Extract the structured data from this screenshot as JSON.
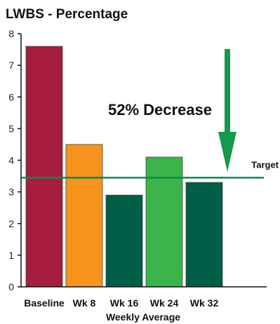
{
  "chart_data": {
    "type": "bar",
    "title": "LWBS - Percentage",
    "xlabel": "Weekly Average",
    "ylabel": "",
    "ylim": [
      0,
      8
    ],
    "yticks": [
      "0",
      "1",
      "2",
      "3",
      "4",
      "5",
      "6",
      "7",
      "8"
    ],
    "categories": [
      "Baseline",
      "Wk 8",
      "Wk 16",
      "Wk 24",
      "Wk 32"
    ],
    "values": [
      7.6,
      4.5,
      2.9,
      4.1,
      3.3
    ],
    "colors": [
      "#a61d3f",
      "#f7941d",
      "#005e47",
      "#3cb44b",
      "#005e47"
    ],
    "target": {
      "label": "Target",
      "value": 3.45,
      "color": "#0a8a4a"
    },
    "annotation": {
      "text": "52% Decrease",
      "arrow_color": "#159a4d"
    },
    "grid": false,
    "legend": "none"
  }
}
